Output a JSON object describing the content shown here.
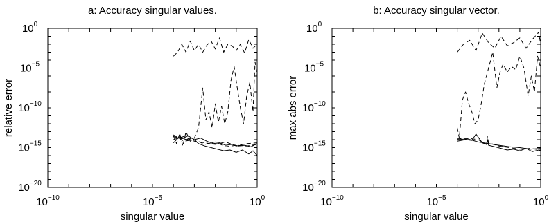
{
  "chart_data": [
    {
      "type": "line",
      "title": "a: Accuracy singular values.",
      "xlabel": "singular  value",
      "ylabel": "relative error",
      "xscale": "log",
      "yscale": "log",
      "xlim": [
        1e-10,
        1
      ],
      "ylim": [
        1e-20,
        1
      ],
      "x_tick_labels": [
        {
          "base": "10",
          "exp": "−10",
          "value": 1e-10
        },
        {
          "base": "10",
          "exp": "−5",
          "value": 1e-05
        },
        {
          "base": "10",
          "exp": "0",
          "value": 1
        }
      ],
      "y_tick_labels": [
        {
          "base": "10",
          "exp": "0",
          "value": 1
        },
        {
          "base": "10",
          "exp": "−5",
          "value": 1e-05
        },
        {
          "base": "10",
          "exp": "−10",
          "value": 1e-10
        },
        {
          "base": "10",
          "exp": "−15",
          "value": 1e-15
        },
        {
          "base": "10",
          "exp": "−20",
          "value": 1e-20
        }
      ],
      "grid": false,
      "series": [
        {
          "style": "dashed",
          "x": [
            -4,
            -3.8,
            -3.6,
            -3.4,
            -3.2,
            -3.0,
            -2.8,
            -2.6,
            -2.4,
            -2.2,
            -2.0,
            -1.8,
            -1.6,
            -1.4,
            -1.2,
            -1.0,
            -0.8,
            -0.6,
            -0.4,
            -0.2,
            0
          ],
          "y": [
            -3.5,
            -3.0,
            -2.0,
            -3.0,
            -1.6,
            -2.8,
            -2.0,
            -3.0,
            -2.1,
            -1.6,
            -2.6,
            -1.2,
            -3.0,
            -2.0,
            -2.2,
            -2.8,
            -2.0,
            -3.1,
            -1.4,
            -2.5,
            -2.0
          ]
        },
        {
          "style": "dashed",
          "x": [
            -4,
            -3.85,
            -3.7,
            -3.55,
            -3.4,
            -3.2,
            -3.0,
            -2.8,
            -2.6,
            -2.45,
            -2.3,
            -2.15,
            -2.0,
            -1.85,
            -1.7,
            -1.55,
            -1.4,
            -1.25,
            -1.1,
            -0.95,
            -0.8,
            -0.65,
            -0.5,
            -0.35,
            -0.2,
            -0.1,
            0
          ],
          "y": [
            -13.5,
            -14.5,
            -13.2,
            -14.8,
            -13.0,
            -14.2,
            -13.8,
            -12.5,
            -7.5,
            -11.5,
            -10.5,
            -12.5,
            -9.5,
            -11.8,
            -9.8,
            -12.0,
            -10.5,
            -6.5,
            -4.8,
            -7.5,
            -10.0,
            -12.0,
            -8.5,
            -6.8,
            -10.5,
            -4.2,
            -6.0
          ]
        },
        {
          "style": "dashed",
          "x": [
            -4,
            -3.5,
            -3.0,
            -2.5,
            -2.0,
            -1.5,
            -1.0,
            -0.5,
            0
          ],
          "y": [
            -14.0,
            -13.6,
            -14.2,
            -14.4,
            -14.6,
            -14.3,
            -14.8,
            -14.5,
            -14.4
          ]
        },
        {
          "style": "dashed",
          "x": [
            -4,
            -3.5,
            -3.0,
            -2.5,
            -2.0,
            -1.5,
            -1.0,
            -0.5,
            0
          ],
          "y": [
            -13.4,
            -14.2,
            -14.0,
            -14.6,
            -14.3,
            -14.9,
            -14.7,
            -14.8,
            -14.6
          ]
        },
        {
          "style": "solid",
          "x": [
            -4,
            -3.7,
            -3.4,
            -3.1,
            -2.8,
            -2.5,
            -2.2,
            -1.9,
            -1.6,
            -1.3,
            -1.0,
            -0.7,
            -0.4,
            -0.2,
            0
          ],
          "y": [
            -14.4,
            -13.6,
            -14.0,
            -13.8,
            -14.5,
            -14.8,
            -15.0,
            -15.2,
            -15.4,
            -15.3,
            -15.6,
            -15.3,
            -15.8,
            -15.4,
            -16.0
          ]
        },
        {
          "style": "solid",
          "x": [
            -4,
            -3.6,
            -3.3,
            -3.0,
            -2.7,
            -2.4,
            -2.1,
            -1.8,
            -1.5,
            -1.2,
            -0.9,
            -0.6,
            -0.3,
            0
          ],
          "y": [
            -13.6,
            -13.9,
            -13.5,
            -14.0,
            -13.8,
            -14.2,
            -14.5,
            -14.4,
            -14.7,
            -14.6,
            -14.8,
            -14.7,
            -14.9,
            -14.5
          ]
        }
      ]
    },
    {
      "type": "line",
      "title": "b: Accuracy singular vector.",
      "xlabel": "singular  value",
      "ylabel": "max abs error",
      "xscale": "log",
      "yscale": "log",
      "xlim": [
        1e-10,
        1
      ],
      "ylim": [
        1e-20,
        1
      ],
      "x_tick_labels": [
        {
          "base": "10",
          "exp": "−10",
          "value": 1e-10
        },
        {
          "base": "10",
          "exp": "−5",
          "value": 1e-05
        },
        {
          "base": "10",
          "exp": "0",
          "value": 1
        }
      ],
      "y_tick_labels": [
        {
          "base": "10",
          "exp": "0",
          "value": 1
        },
        {
          "base": "10",
          "exp": "−5",
          "value": 1e-05
        },
        {
          "base": "10",
          "exp": "−10",
          "value": 1e-10
        },
        {
          "base": "10",
          "exp": "−15",
          "value": 1e-15
        },
        {
          "base": "10",
          "exp": "−20",
          "value": 1e-20
        }
      ],
      "grid": false,
      "series": [
        {
          "style": "dashed",
          "x": [
            -4,
            -3.7,
            -3.4,
            -3.1,
            -2.8,
            -2.5,
            -2.2,
            -1.9,
            -1.6,
            -1.3,
            -1.0,
            -0.7,
            -0.4,
            -0.1,
            0
          ],
          "y": [
            -3.0,
            -2.0,
            -1.5,
            -2.8,
            -0.6,
            -1.8,
            -2.5,
            -1.0,
            -2.2,
            -1.8,
            -1.2,
            -2.5,
            -1.4,
            -0.5,
            -2.0
          ]
        },
        {
          "style": "dashed",
          "x": [
            -4,
            -3.9,
            -3.75,
            -3.6,
            -3.45,
            -3.3,
            -3.15,
            -3.0,
            -2.85,
            -2.7,
            -2.5,
            -2.3,
            -2.1,
            -1.95,
            -1.8,
            -1.6,
            -1.4,
            -1.2,
            -1.0,
            -0.8,
            -0.6,
            -0.45,
            -0.3,
            -0.15,
            0
          ],
          "y": [
            -12.5,
            -13.8,
            -9.0,
            -8.0,
            -9.5,
            -10.5,
            -12.0,
            -11.5,
            -9.5,
            -7.0,
            -5.0,
            -3.0,
            -7.5,
            -5.5,
            -4.5,
            -5.5,
            -4.8,
            -5.2,
            -3.5,
            -5.0,
            -8.5,
            -6.0,
            -8.0,
            -3.5,
            -5.0
          ]
        },
        {
          "style": "dashed",
          "x": [
            -4,
            -3.5,
            -3.0,
            -2.6,
            -2.55,
            -2.5,
            -2.0,
            -1.5,
            -1.0,
            -0.5,
            0
          ],
          "y": [
            -13.9,
            -13.8,
            -14.0,
            -14.6,
            -13.6,
            -14.4,
            -14.8,
            -15.0,
            -15.2,
            -15.1,
            -15.3
          ]
        },
        {
          "style": "solid",
          "x": [
            -4,
            -3.6,
            -3.3,
            -3.1,
            -2.8,
            -2.6,
            -2.55,
            -2.5,
            -2.2,
            -1.9,
            -1.6,
            -1.3,
            -1.0,
            -0.7,
            -0.4,
            -0.1,
            0
          ],
          "y": [
            -14.2,
            -14.0,
            -14.1,
            -13.3,
            -14.4,
            -14.6,
            -14.0,
            -14.7,
            -14.9,
            -15.1,
            -15.3,
            -15.2,
            -15.4,
            -15.1,
            -15.5,
            -15.3,
            -15.4
          ]
        },
        {
          "style": "solid",
          "x": [
            -4,
            -3.5,
            -3.0,
            -2.5,
            -2.0,
            -1.5,
            -1.0,
            -0.5,
            0
          ],
          "y": [
            -14.0,
            -13.9,
            -14.3,
            -14.5,
            -14.7,
            -14.9,
            -15.0,
            -15.2,
            -15.1
          ]
        }
      ]
    }
  ]
}
